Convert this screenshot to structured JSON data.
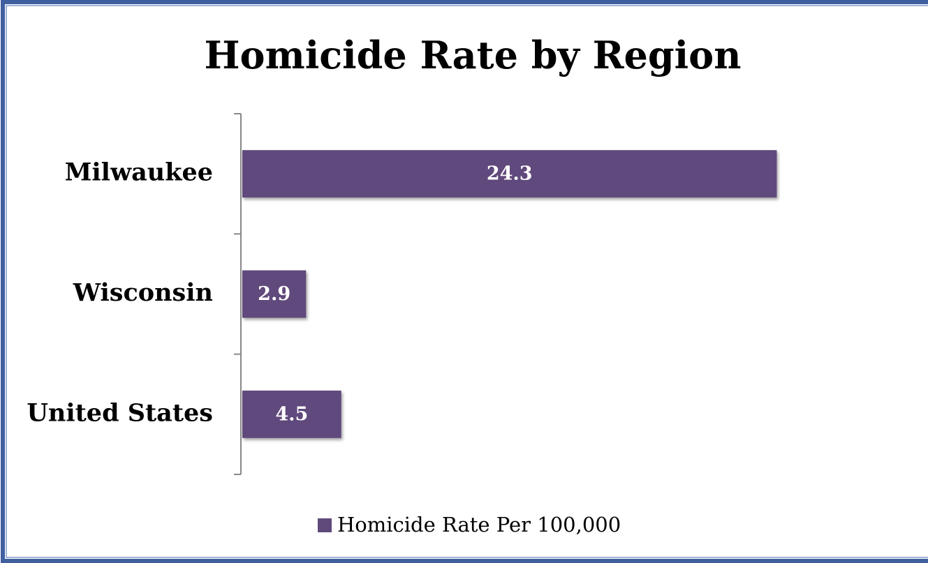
{
  "chart_data": {
    "type": "bar",
    "orientation": "horizontal",
    "title": "Homicide Rate by Region",
    "categories": [
      "Milwaukee",
      "Wisconsin",
      "United States"
    ],
    "series": [
      {
        "name": "Homicide Rate Per 100,000",
        "color": "#604a7b",
        "values": [
          24.3,
          2.9,
          4.5
        ]
      }
    ],
    "xlim": [
      0,
      30
    ],
    "legend": "bottom"
  }
}
